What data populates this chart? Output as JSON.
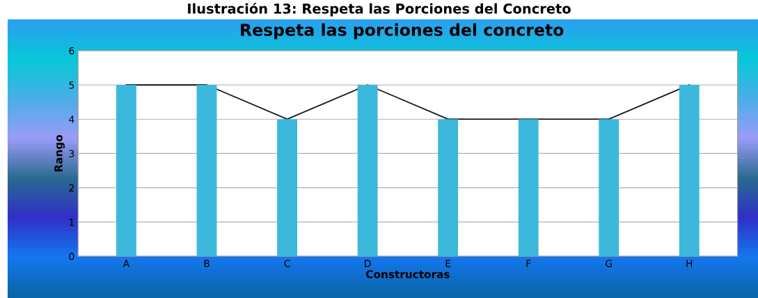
{
  "chart_data": {
    "type": "bar",
    "title": "Respeta las porciones del concreto",
    "xlabel": "Constructoras",
    "ylabel": "Rango",
    "annotations": [
      "Ilustración 13: Respeta las Porciones del Concreto"
    ],
    "categories": [
      "A",
      "B",
      "C",
      "D",
      "E",
      "F",
      "G",
      "H"
    ],
    "series": [
      {
        "color": "#3bb8dc",
        "values": [
          5,
          5,
          4,
          5,
          4,
          4,
          4,
          5
        ]
      },
      {
        "type": "line",
        "color": "#1a1a1a",
        "values": [
          5,
          5,
          4,
          5,
          4,
          4,
          4,
          5
        ]
      }
    ],
    "ylim": [
      0,
      6
    ],
    "yticks": [
      0,
      1,
      2,
      3,
      4,
      5,
      6
    ],
    "grid": "y",
    "legend": false
  }
}
